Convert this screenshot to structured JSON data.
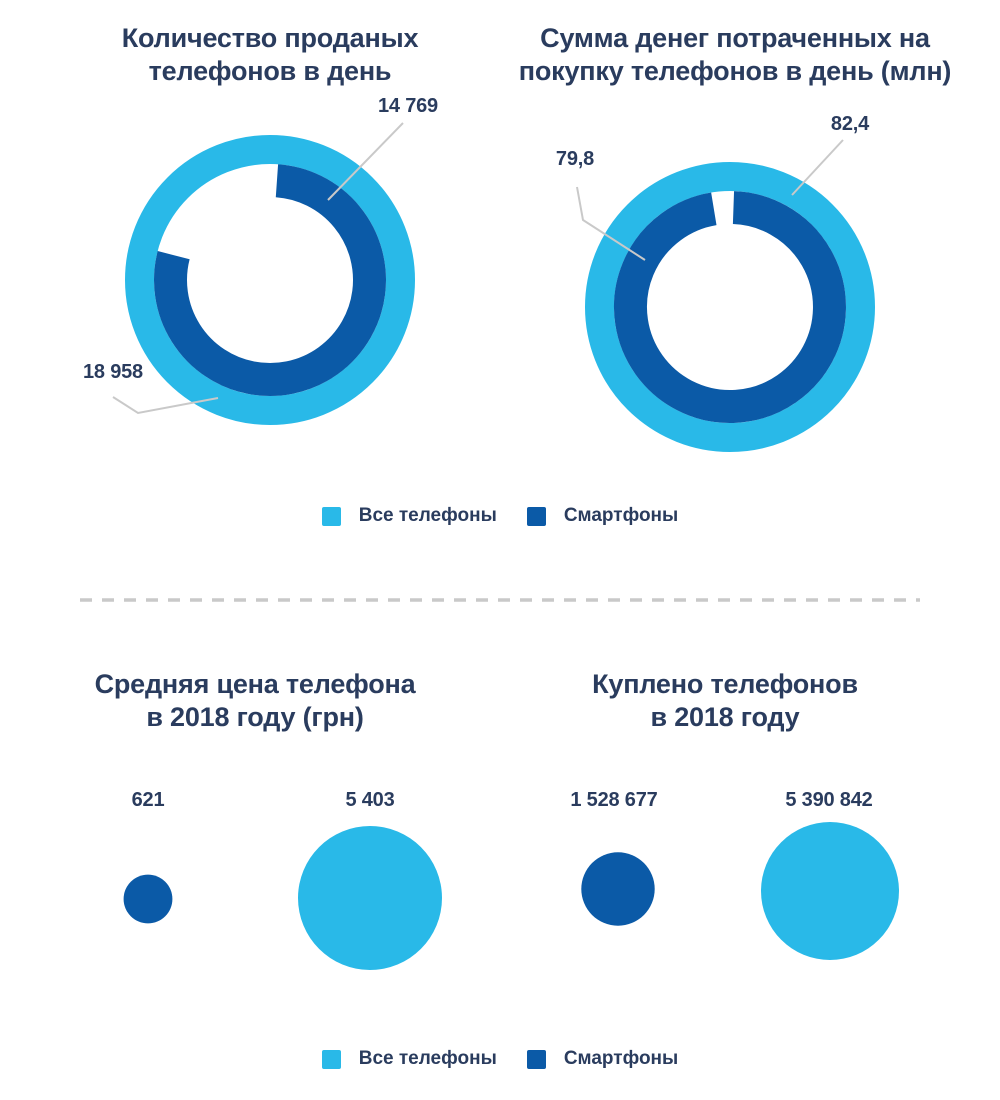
{
  "colors": {
    "all_phones": "#29b9e8",
    "smartphones": "#0b5aa7",
    "text": "#2a3c5e",
    "leader_line": "#c9c9c9",
    "divider": "#c9c9c9",
    "background": "#ffffff"
  },
  "legend": {
    "all_phones": "Все телефоны",
    "smartphones": "Смартфоны"
  },
  "chart_data": [
    {
      "type": "pie",
      "subtype": "donut",
      "title": "Количество проданых телефонов в день",
      "title_lines": [
        "Количество проданых",
        "телефонов в день"
      ],
      "legend_position": "bottom-center",
      "series": [
        {
          "name": "Все телефоны",
          "value": 18958,
          "label": "18 958",
          "ring": "outer",
          "color": "#29b9e8"
        },
        {
          "name": "Смартфоны",
          "value": 14769,
          "label": "14 769",
          "ring": "inner",
          "color": "#0b5aa7"
        }
      ]
    },
    {
      "type": "pie",
      "subtype": "donut",
      "title": "Сумма денег потраченных на покупку телефонов в день (млн)",
      "title_lines": [
        "Сумма денег потраченных на",
        "покупку телефонов в день (млн)"
      ],
      "legend_position": "bottom-center",
      "series": [
        {
          "name": "Все телефоны",
          "value": 82.4,
          "label": "82,4",
          "ring": "outer",
          "color": "#29b9e8"
        },
        {
          "name": "Смартфоны",
          "value": 79.8,
          "label": "79,8",
          "ring": "inner",
          "color": "#0b5aa7"
        }
      ]
    },
    {
      "type": "scatter",
      "subtype": "bubble",
      "title": "Средняя цена телефона в 2018 году (грн)",
      "title_lines": [
        "Средняя цена телефона",
        "в 2018 году (грн)"
      ],
      "legend_position": "bottom-center",
      "series": [
        {
          "name": "Смартфоны",
          "value": 621,
          "label": "621",
          "color": "#0b5aa7"
        },
        {
          "name": "Все телефоны",
          "value": 5403,
          "label": "5 403",
          "color": "#29b9e8"
        }
      ]
    },
    {
      "type": "scatter",
      "subtype": "bubble",
      "title": "Куплено телефонов в 2018 году",
      "title_lines": [
        "Куплено телефонов",
        "в 2018 году"
      ],
      "legend_position": "bottom-center",
      "series": [
        {
          "name": "Смартфоны",
          "value": 1528677,
          "label": "1 528 677",
          "color": "#0b5aa7"
        },
        {
          "name": "Все телефоны",
          "value": 5390842,
          "label": "5 390 842",
          "color": "#29b9e8"
        }
      ]
    }
  ]
}
